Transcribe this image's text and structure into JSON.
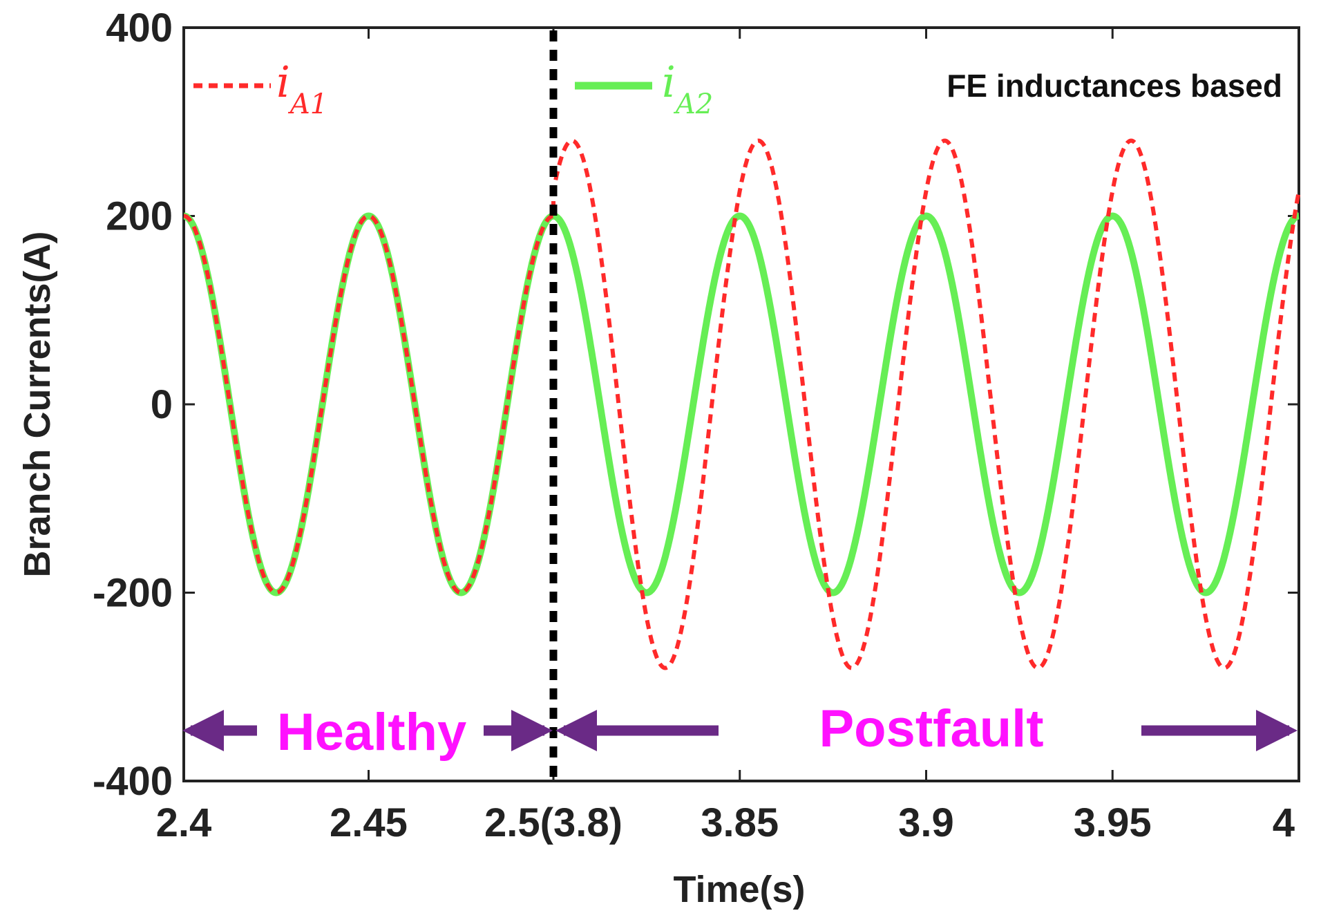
{
  "chart_data": {
    "type": "line",
    "title": "",
    "xlabel": "Time(s)",
    "ylabel": "Branch Currents(A)",
    "ylim": [
      -400,
      400
    ],
    "x_tick_labels": [
      "2.4",
      "2.45",
      "2.5(3.8)",
      "3.85",
      "3.9",
      "3.95",
      "4"
    ],
    "y_tick_labels": [
      "400",
      "200",
      "0",
      "-200",
      "-400"
    ],
    "y_tick_values": [
      400,
      200,
      0,
      -200,
      -400
    ],
    "grid": false,
    "corner_note": "FE inductances based",
    "fault_divider_label": "2.5(3.8)",
    "series": [
      {
        "name": "i_A1",
        "symbol": "i",
        "subscript": "A1",
        "color": "#ff2a2a",
        "style": "dashed",
        "healthy": {
          "t_start": 2.4,
          "t_end": 2.5,
          "amplitude": 200,
          "frequency_hz": 20
        },
        "postfault": {
          "t_start": 3.8,
          "t_end": 4.0,
          "amplitude": 280,
          "frequency_hz": 20,
          "peak_time": 3.805
        }
      },
      {
        "name": "i_A2",
        "symbol": "i",
        "subscript": "A2",
        "color": "#66ee55",
        "style": "solid",
        "healthy": {
          "t_start": 2.4,
          "t_end": 2.5,
          "amplitude": 200,
          "frequency_hz": 20
        },
        "postfault": {
          "t_start": 3.8,
          "t_end": 4.0,
          "amplitude": 200,
          "frequency_hz": 20,
          "peak_time": 3.85
        }
      }
    ],
    "regions": [
      {
        "label": "Healthy",
        "color": "#ff11ff",
        "arrow_color": "#6a2a86"
      },
      {
        "label": "Postfault",
        "color": "#ff11ff",
        "arrow_color": "#6a2a86"
      }
    ]
  }
}
